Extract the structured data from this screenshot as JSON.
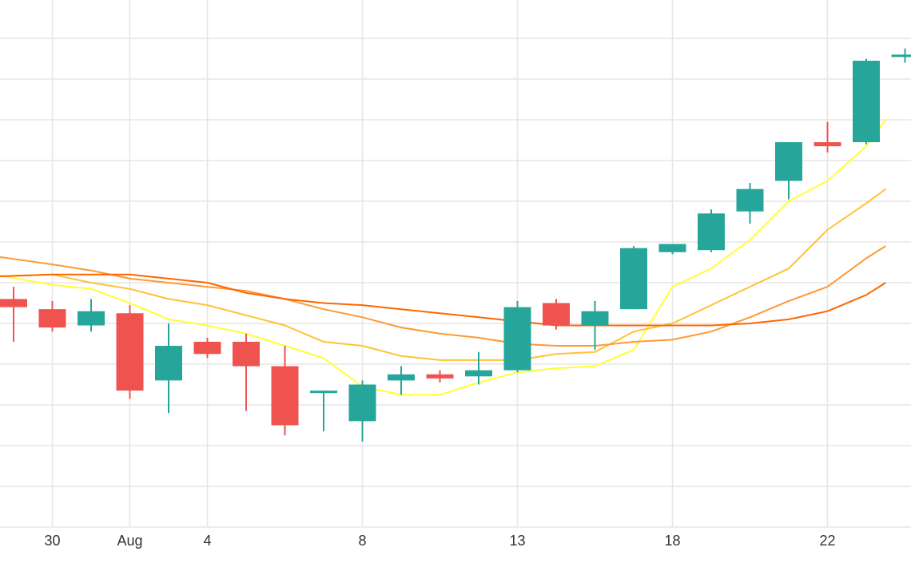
{
  "chart_data": {
    "type": "candlestick",
    "grid": true,
    "x_tick_labels": [
      {
        "label": "30",
        "day": 1
      },
      {
        "label": "Aug",
        "day": 3
      },
      {
        "label": "4",
        "day": 5
      },
      {
        "label": "8",
        "day": 9
      },
      {
        "label": "13",
        "day": 13
      },
      {
        "label": "18",
        "day": 17
      },
      {
        "label": "22",
        "day": 21
      }
    ],
    "ylim": [
      0,
      13
    ],
    "y_gridlines": [
      1,
      2,
      3,
      4,
      5,
      6,
      7,
      8,
      9,
      10,
      11,
      12
    ],
    "candles": [
      {
        "day": 0,
        "open": 5.6,
        "high": 5.9,
        "low": 4.55,
        "close": 5.4
      },
      {
        "day": 1,
        "open": 5.35,
        "high": 5.55,
        "low": 4.8,
        "close": 4.9
      },
      {
        "day": 2,
        "open": 4.95,
        "high": 5.6,
        "low": 4.8,
        "close": 5.3
      },
      {
        "day": 3,
        "open": 5.25,
        "high": 5.45,
        "low": 3.15,
        "close": 3.35
      },
      {
        "day": 4,
        "open": 3.6,
        "high": 5.0,
        "low": 2.8,
        "close": 4.45
      },
      {
        "day": 5,
        "open": 4.55,
        "high": 4.65,
        "low": 4.15,
        "close": 4.25
      },
      {
        "day": 6,
        "open": 4.55,
        "high": 4.75,
        "low": 2.85,
        "close": 3.95
      },
      {
        "day": 7,
        "open": 3.95,
        "high": 4.45,
        "low": 2.25,
        "close": 2.5
      },
      {
        "day": 8,
        "open": 3.35,
        "high": 3.35,
        "low": 2.35,
        "close": 3.35
      },
      {
        "day": 9,
        "open": 2.6,
        "high": 3.6,
        "low": 2.1,
        "close": 3.5
      },
      {
        "day": 10,
        "open": 3.6,
        "high": 3.95,
        "low": 3.25,
        "close": 3.75
      },
      {
        "day": 11,
        "open": 3.75,
        "high": 3.85,
        "low": 3.55,
        "close": 3.65
      },
      {
        "day": 12,
        "open": 3.7,
        "high": 4.3,
        "low": 3.5,
        "close": 3.85
      },
      {
        "day": 13,
        "open": 3.85,
        "high": 5.55,
        "low": 3.8,
        "close": 5.4
      },
      {
        "day": 14,
        "open": 5.5,
        "high": 5.6,
        "low": 4.85,
        "close": 4.95
      },
      {
        "day": 15,
        "open": 4.95,
        "high": 5.55,
        "low": 4.35,
        "close": 5.3
      },
      {
        "day": 16,
        "open": 5.35,
        "high": 6.9,
        "low": 5.35,
        "close": 6.85
      },
      {
        "day": 17,
        "open": 6.75,
        "high": 6.95,
        "low": 6.7,
        "close": 6.95
      },
      {
        "day": 18,
        "open": 6.8,
        "high": 7.8,
        "low": 6.75,
        "close": 7.7
      },
      {
        "day": 19,
        "open": 7.75,
        "high": 8.45,
        "low": 7.45,
        "close": 8.3
      },
      {
        "day": 20,
        "open": 8.5,
        "high": 9.45,
        "low": 8.05,
        "close": 9.45
      },
      {
        "day": 21,
        "open": 9.45,
        "high": 9.95,
        "low": 9.2,
        "close": 9.35
      },
      {
        "day": 22,
        "open": 9.45,
        "high": 11.5,
        "low": 9.4,
        "close": 11.45
      },
      {
        "day": 23,
        "open": 11.6,
        "high": 11.75,
        "low": 11.4,
        "close": 11.6
      }
    ],
    "series": [
      {
        "kind": "moving-average",
        "color": "#ffff33",
        "values": [
          {
            "day": -0.5,
            "y": 6.2
          },
          {
            "day": 1,
            "y": 5.95
          },
          {
            "day": 2,
            "y": 5.85
          },
          {
            "day": 3,
            "y": 5.5
          },
          {
            "day": 4,
            "y": 5.1
          },
          {
            "day": 5,
            "y": 4.95
          },
          {
            "day": 6,
            "y": 4.75
          },
          {
            "day": 7,
            "y": 4.45
          },
          {
            "day": 8,
            "y": 4.15
          },
          {
            "day": 9,
            "y": 3.45
          },
          {
            "day": 10,
            "y": 3.25
          },
          {
            "day": 11,
            "y": 3.25
          },
          {
            "day": 12,
            "y": 3.55
          },
          {
            "day": 13,
            "y": 3.8
          },
          {
            "day": 14,
            "y": 3.9
          },
          {
            "day": 15,
            "y": 3.95
          },
          {
            "day": 16,
            "y": 4.35
          },
          {
            "day": 17,
            "y": 5.9
          },
          {
            "day": 18,
            "y": 6.35
          },
          {
            "day": 19,
            "y": 7.05
          },
          {
            "day": 20,
            "y": 8.0
          },
          {
            "day": 21,
            "y": 8.5
          },
          {
            "day": 22,
            "y": 9.35
          },
          {
            "day": 22.5,
            "y": 10.0
          }
        ]
      },
      {
        "kind": "moving-average",
        "color": "#ffc233",
        "values": [
          {
            "day": -0.5,
            "y": 6.15
          },
          {
            "day": 1,
            "y": 6.2
          },
          {
            "day": 2,
            "y": 6.0
          },
          {
            "day": 3,
            "y": 5.85
          },
          {
            "day": 4,
            "y": 5.6
          },
          {
            "day": 5,
            "y": 5.45
          },
          {
            "day": 6,
            "y": 5.2
          },
          {
            "day": 7,
            "y": 4.95
          },
          {
            "day": 8,
            "y": 4.55
          },
          {
            "day": 9,
            "y": 4.45
          },
          {
            "day": 10,
            "y": 4.2
          },
          {
            "day": 11,
            "y": 4.1
          },
          {
            "day": 12,
            "y": 4.1
          },
          {
            "day": 13,
            "y": 4.1
          },
          {
            "day": 14,
            "y": 4.25
          },
          {
            "day": 15,
            "y": 4.3
          },
          {
            "day": 16,
            "y": 4.8
          },
          {
            "day": 17,
            "y": 5.0
          },
          {
            "day": 18,
            "y": 5.45
          },
          {
            "day": 19,
            "y": 5.9
          },
          {
            "day": 20,
            "y": 6.35
          },
          {
            "day": 21,
            "y": 7.3
          },
          {
            "day": 22,
            "y": 7.95
          },
          {
            "day": 22.5,
            "y": 8.3
          }
        ]
      },
      {
        "kind": "moving-average",
        "color": "#ff9933",
        "values": [
          {
            "day": -0.5,
            "y": 6.65
          },
          {
            "day": 1,
            "y": 6.45
          },
          {
            "day": 2,
            "y": 6.3
          },
          {
            "day": 3,
            "y": 6.1
          },
          {
            "day": 4,
            "y": 6.0
          },
          {
            "day": 5,
            "y": 5.9
          },
          {
            "day": 6,
            "y": 5.8
          },
          {
            "day": 7,
            "y": 5.6
          },
          {
            "day": 8,
            "y": 5.35
          },
          {
            "day": 9,
            "y": 5.15
          },
          {
            "day": 10,
            "y": 4.9
          },
          {
            "day": 11,
            "y": 4.75
          },
          {
            "day": 12,
            "y": 4.65
          },
          {
            "day": 13,
            "y": 4.5
          },
          {
            "day": 14,
            "y": 4.45
          },
          {
            "day": 15,
            "y": 4.45
          },
          {
            "day": 16,
            "y": 4.55
          },
          {
            "day": 17,
            "y": 4.6
          },
          {
            "day": 18,
            "y": 4.8
          },
          {
            "day": 19,
            "y": 5.15
          },
          {
            "day": 20,
            "y": 5.55
          },
          {
            "day": 21,
            "y": 5.9
          },
          {
            "day": 22,
            "y": 6.6
          },
          {
            "day": 22.5,
            "y": 6.9
          }
        ]
      },
      {
        "kind": "moving-average",
        "color": "#ff6600",
        "values": [
          {
            "day": -0.5,
            "y": 6.15
          },
          {
            "day": 1,
            "y": 6.2
          },
          {
            "day": 2,
            "y": 6.2
          },
          {
            "day": 3,
            "y": 6.2
          },
          {
            "day": 4,
            "y": 6.1
          },
          {
            "day": 5,
            "y": 6.0
          },
          {
            "day": 6,
            "y": 5.75
          },
          {
            "day": 7,
            "y": 5.6
          },
          {
            "day": 8,
            "y": 5.5
          },
          {
            "day": 9,
            "y": 5.45
          },
          {
            "day": 10,
            "y": 5.35
          },
          {
            "day": 11,
            "y": 5.25
          },
          {
            "day": 12,
            "y": 5.15
          },
          {
            "day": 13,
            "y": 5.05
          },
          {
            "day": 14,
            "y": 4.95
          },
          {
            "day": 15,
            "y": 4.95
          },
          {
            "day": 16,
            "y": 4.95
          },
          {
            "day": 17,
            "y": 4.95
          },
          {
            "day": 18,
            "y": 4.95
          },
          {
            "day": 19,
            "y": 5.0
          },
          {
            "day": 20,
            "y": 5.1
          },
          {
            "day": 21,
            "y": 5.3
          },
          {
            "day": 22,
            "y": 5.7
          },
          {
            "day": 22.5,
            "y": 6.0
          }
        ]
      }
    ],
    "colors": {
      "increasing": "#26a69a",
      "decreasing": "#ef5350",
      "grid": "#e6e6e6",
      "tick_text": "#333333"
    }
  }
}
